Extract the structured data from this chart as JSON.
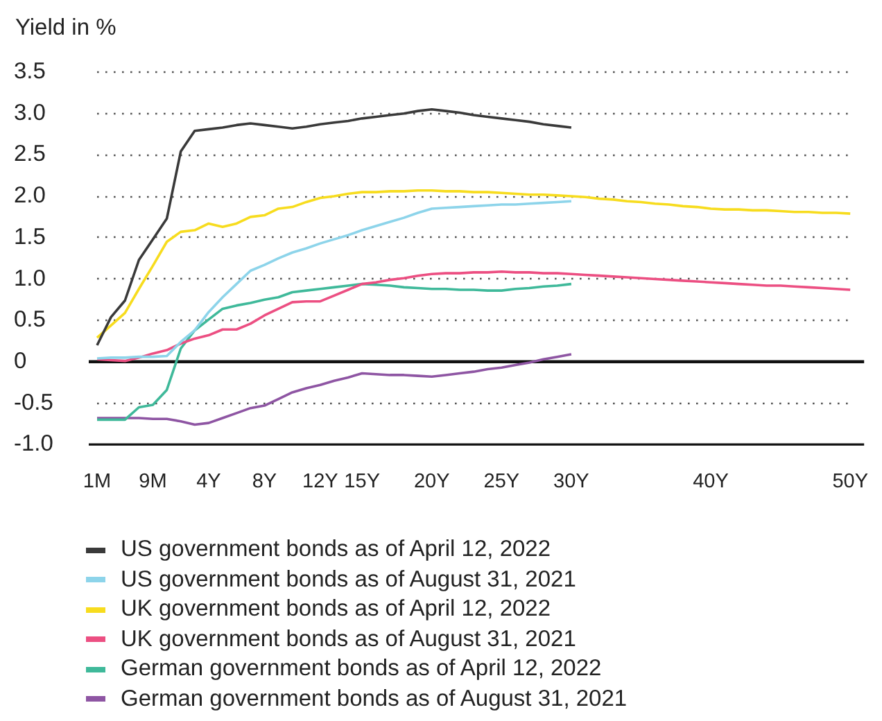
{
  "chart_data": {
    "type": "line",
    "ylabel": "Yield in %",
    "categories": [
      "1M",
      null,
      null,
      null,
      "9M",
      null,
      null,
      null,
      "4Y",
      null,
      null,
      null,
      "8Y",
      null,
      null,
      null,
      "12Y",
      null,
      null,
      "15Y",
      null,
      null,
      null,
      null,
      "20Y",
      null,
      null,
      null,
      null,
      "25Y",
      null,
      null,
      null,
      null,
      "30Y",
      null,
      null,
      null,
      null,
      null,
      null,
      null,
      null,
      null,
      "40Y",
      null,
      null,
      null,
      null,
      null,
      null,
      null,
      null,
      null,
      "50Y"
    ],
    "ylim": [
      -1,
      3.5
    ],
    "yticks": [
      {
        "value": -1,
        "label": "-1.0"
      },
      -0.5,
      0,
      0.5,
      {
        "value": 1,
        "label": "1.0"
      },
      1.5,
      {
        "value": 2,
        "label": "2.0"
      },
      2.5,
      {
        "value": 3,
        "label": "3.0"
      },
      3.5
    ],
    "grid": "y",
    "legend": "bottom",
    "marker": "none",
    "line_style": "solid",
    "ref_lines": [
      {
        "axis": "y",
        "value": 0,
        "color": "#111111"
      }
    ],
    "series": [
      {
        "name": "US government bonds as of April 12, 2022",
        "color": "#3a3a3a",
        "values": [
          0.2,
          0.54,
          0.74,
          1.23,
          1.48,
          1.73,
          2.54,
          2.79,
          2.81,
          2.83,
          2.86,
          2.88,
          2.86,
          2.84,
          2.82,
          2.84,
          2.87,
          2.89,
          2.91,
          2.94,
          2.96,
          2.98,
          3.0,
          3.03,
          3.05,
          3.03,
          3.01,
          2.98,
          2.96,
          2.94,
          2.92,
          2.9,
          2.87,
          2.85,
          2.83,
          null,
          null,
          null,
          null,
          null,
          null,
          null,
          null,
          null,
          null,
          null,
          null,
          null,
          null,
          null,
          null,
          null,
          null,
          null,
          null
        ]
      },
      {
        "name": "US government bonds as of August 31, 2021",
        "color": "#8dd4ea",
        "values": [
          0.04,
          0.05,
          0.05,
          0.06,
          0.06,
          0.07,
          0.24,
          0.38,
          0.6,
          0.78,
          0.94,
          1.1,
          1.17,
          1.25,
          1.32,
          1.37,
          1.43,
          1.48,
          1.53,
          1.59,
          1.64,
          1.69,
          1.74,
          1.8,
          1.85,
          1.86,
          1.87,
          1.88,
          1.89,
          1.9,
          1.9,
          1.91,
          1.92,
          1.93,
          1.94,
          null,
          null,
          null,
          null,
          null,
          null,
          null,
          null,
          null,
          null,
          null,
          null,
          null,
          null,
          null,
          null,
          null,
          null,
          null,
          null
        ]
      },
      {
        "name": "UK government bonds as of April 12, 2022",
        "color": "#f7dc1e",
        "values": [
          0.29,
          0.44,
          0.59,
          0.88,
          1.16,
          1.45,
          1.57,
          1.59,
          1.67,
          1.63,
          1.67,
          1.75,
          1.77,
          1.85,
          1.87,
          1.93,
          1.98,
          2.0,
          2.03,
          2.05,
          2.05,
          2.06,
          2.06,
          2.07,
          2.07,
          2.06,
          2.06,
          2.05,
          2.05,
          2.04,
          2.03,
          2.02,
          2.02,
          2.01,
          2.0,
          1.99,
          1.97,
          1.96,
          1.94,
          1.93,
          1.91,
          1.9,
          1.88,
          1.87,
          1.85,
          1.84,
          1.84,
          1.83,
          1.83,
          1.82,
          1.81,
          1.81,
          1.8,
          1.8,
          1.79
        ]
      },
      {
        "name": "UK government bonds as of August 31, 2021",
        "color": "#ec4f82",
        "values": [
          0.03,
          0.02,
          0.01,
          0.05,
          0.1,
          0.14,
          0.22,
          0.28,
          0.32,
          0.39,
          0.39,
          0.46,
          0.56,
          0.64,
          0.72,
          0.73,
          0.73,
          0.8,
          0.87,
          0.94,
          0.96,
          0.99,
          1.01,
          1.04,
          1.06,
          1.07,
          1.07,
          1.08,
          1.08,
          1.09,
          1.08,
          1.08,
          1.07,
          1.07,
          1.06,
          1.05,
          1.04,
          1.03,
          1.02,
          1.01,
          1.0,
          0.99,
          0.98,
          0.97,
          0.96,
          0.95,
          0.94,
          0.93,
          0.92,
          0.92,
          0.91,
          0.9,
          0.89,
          0.88,
          0.87
        ]
      },
      {
        "name": "German government bonds as of April 12, 2022",
        "color": "#3fb99a",
        "values": [
          -0.7,
          -0.7,
          -0.7,
          -0.55,
          -0.52,
          -0.34,
          0.16,
          0.38,
          0.51,
          0.64,
          0.68,
          0.71,
          0.75,
          0.78,
          0.84,
          0.86,
          0.88,
          0.9,
          0.92,
          0.94,
          0.93,
          0.92,
          0.9,
          0.89,
          0.88,
          0.88,
          0.87,
          0.87,
          0.86,
          0.86,
          0.88,
          0.89,
          0.91,
          0.92,
          0.94,
          null,
          null,
          null,
          null,
          null,
          null,
          null,
          null,
          null,
          null,
          null,
          null,
          null,
          null,
          null,
          null,
          null,
          null,
          null,
          null
        ]
      },
      {
        "name": "German government bonds as of August 31, 2021",
        "color": "#8e55a3",
        "values": [
          -0.68,
          -0.68,
          -0.68,
          -0.68,
          -0.69,
          -0.69,
          -0.72,
          -0.76,
          -0.74,
          -0.68,
          -0.62,
          -0.56,
          -0.53,
          -0.45,
          -0.37,
          -0.32,
          -0.28,
          -0.23,
          -0.19,
          -0.14,
          -0.15,
          -0.16,
          -0.16,
          -0.17,
          -0.18,
          -0.16,
          -0.14,
          -0.12,
          -0.09,
          -0.07,
          -0.04,
          -0.01,
          0.03,
          0.06,
          0.09,
          null,
          null,
          null,
          null,
          null,
          null,
          null,
          null,
          null,
          null,
          null,
          null,
          null,
          null,
          null,
          null,
          null,
          null,
          null,
          null
        ]
      }
    ]
  }
}
